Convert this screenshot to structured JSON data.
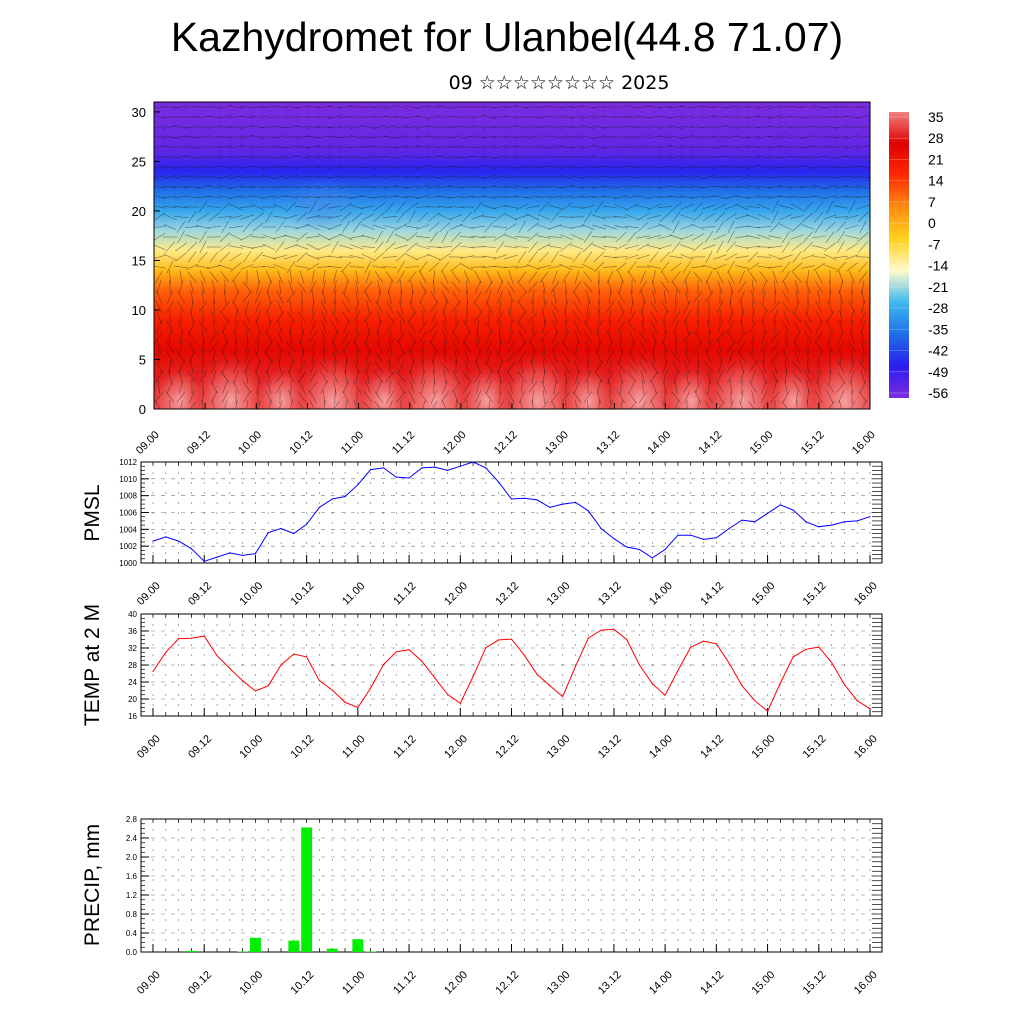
{
  "header": {
    "title": "Kazhydromet for Ulanbel(44.8 71.07)",
    "date_line": "09 ☆☆☆☆☆☆☆☆ 2025"
  },
  "chart_data": [
    {
      "type": "heatmap",
      "title": "",
      "description_overlay": "wind vectors",
      "x_ticks": [
        "09.00",
        "09.12",
        "10.00",
        "10.12",
        "11.00",
        "11.12",
        "12.00",
        "12.12",
        "13.00",
        "13.12",
        "14.00",
        "14.12",
        "15.00",
        "15.12",
        "16.00"
      ],
      "y_ticks": [
        0,
        5,
        10,
        15,
        20,
        25,
        30
      ],
      "ylim": [
        0,
        31
      ],
      "colorbar_labels": [
        35,
        28,
        21,
        14,
        7,
        0,
        -7,
        -14,
        -21,
        -28,
        -35,
        -42,
        -49,
        -56
      ],
      "colorbar_range": [
        -60,
        38
      ],
      "temperature_profile": [
        {
          "level": 0,
          "value": 35
        },
        {
          "level": 3,
          "value": 30
        },
        {
          "level": 6,
          "value": 25
        },
        {
          "level": 9,
          "value": 19
        },
        {
          "level": 12,
          "value": 10
        },
        {
          "level": 14,
          "value": -2
        },
        {
          "level": 16,
          "value": -12
        },
        {
          "level": 18,
          "value": -22
        },
        {
          "level": 20,
          "value": -30
        },
        {
          "level": 22,
          "value": -38
        },
        {
          "level": 24,
          "value": -48
        },
        {
          "level": 26,
          "value": -56
        },
        {
          "level": 28,
          "value": -58
        },
        {
          "level": 31,
          "value": -60
        }
      ],
      "warm_cores_x": [
        0.5,
        1.5,
        2.5,
        3.5,
        4.5,
        5.5,
        6.5,
        7.5,
        8.5,
        9.5,
        10.5,
        11.5,
        12.5,
        13.5
      ],
      "colors": {
        "scale": [
          "#7b2ce0",
          "#2a1cf0",
          "#1e6ee8",
          "#3fb8f0",
          "#fffacd",
          "#ffd21e",
          "#ff8c10",
          "#ff2a00",
          "#e00000",
          "#f08080"
        ]
      }
    },
    {
      "type": "line",
      "ylabel": "PMSL",
      "color": "#0000ff",
      "ylim": [
        1000,
        1012
      ],
      "y_ticks": [
        1000,
        1002,
        1004,
        1006,
        1008,
        1010,
        1012
      ],
      "x_ticks": [
        "09.00",
        "09.12",
        "10.00",
        "10.12",
        "11.00",
        "11.12",
        "12.00",
        "12.12",
        "13.00",
        "13.12",
        "14.00",
        "14.12",
        "15.00",
        "15.12",
        "16.00"
      ],
      "x_step_hours": 3,
      "values": [
        1002.6,
        1003.1,
        1002.6,
        1001.7,
        1000.2,
        1000.7,
        1001.2,
        1000.9,
        1001.1,
        1003.6,
        1004.1,
        1003.5,
        1004.6,
        1006.6,
        1007.6,
        1007.9,
        1009.3,
        1011.1,
        1011.3,
        1010.2,
        1010.1,
        1011.3,
        1011.4,
        1011.0,
        1011.5,
        1012.0,
        1011.3,
        1009.6,
        1007.6,
        1007.7,
        1007.5,
        1006.6,
        1007.0,
        1007.2,
        1006.2,
        1004.1,
        1002.9,
        1001.9,
        1001.6,
        1000.6,
        1001.6,
        1003.3,
        1003.3,
        1002.8,
        1003.0,
        1004.1,
        1005.1,
        1004.9,
        1005.9,
        1006.9,
        1006.3,
        1004.9,
        1004.3,
        1004.5,
        1004.9,
        1005.0,
        1005.5
      ]
    },
    {
      "type": "line",
      "ylabel": "TEMP at 2 M",
      "color": "#ff0000",
      "ylim": [
        16,
        40
      ],
      "y_ticks": [
        16,
        20,
        24,
        28,
        32,
        36,
        40
      ],
      "x_ticks": [
        "09.00",
        "09.12",
        "10.00",
        "10.12",
        "11.00",
        "11.12",
        "12.00",
        "12.12",
        "13.00",
        "13.12",
        "14.00",
        "14.12",
        "15.00",
        "15.12",
        "16.00"
      ],
      "x_step_hours": 3,
      "values": [
        26.5,
        31.0,
        34.2,
        34.3,
        34.8,
        30.2,
        27.2,
        24.3,
        21.9,
        23.1,
        28.0,
        30.6,
        29.9,
        24.3,
        22.1,
        19.2,
        18.0,
        22.6,
        28.1,
        31.1,
        31.6,
        28.9,
        25.0,
        21.1,
        19.0,
        25.3,
        32.1,
        33.9,
        34.1,
        30.3,
        25.8,
        23.1,
        20.6,
        27.7,
        34.3,
        36.2,
        36.4,
        34.0,
        28.0,
        23.6,
        20.9,
        26.7,
        32.2,
        33.6,
        33.0,
        28.4,
        23.1,
        19.6,
        17.1,
        23.8,
        29.9,
        31.7,
        32.2,
        28.6,
        23.4,
        19.6,
        17.7
      ]
    },
    {
      "type": "bar",
      "ylabel": "PRECIP, mm",
      "color": "#00ee00",
      "ylim": [
        0,
        2.8
      ],
      "y_ticks": [
        "0.0",
        "0.4",
        "0.8",
        "1.2",
        "1.6",
        "2.0",
        "2.4",
        "2.8"
      ],
      "x_ticks": [
        "09.00",
        "09.12",
        "10.00",
        "10.12",
        "11.00",
        "11.12",
        "12.00",
        "12.12",
        "13.00",
        "13.12",
        "14.00",
        "14.12",
        "15.00",
        "15.12",
        "16.00"
      ],
      "x_step_hours": 3,
      "values": [
        0,
        0,
        0,
        0.02,
        0,
        0,
        0,
        0.01,
        0.3,
        0,
        0,
        0.24,
        2.62,
        0,
        0.07,
        0,
        0.27,
        0.01,
        0,
        0,
        0,
        0,
        0,
        0,
        0,
        0,
        0,
        0,
        0,
        0,
        0,
        0,
        0,
        0,
        0,
        0,
        0,
        0,
        0,
        0,
        0,
        0,
        0,
        0,
        0,
        0,
        0,
        0,
        0,
        0,
        0,
        0,
        0,
        0,
        0,
        0,
        0
      ]
    }
  ]
}
